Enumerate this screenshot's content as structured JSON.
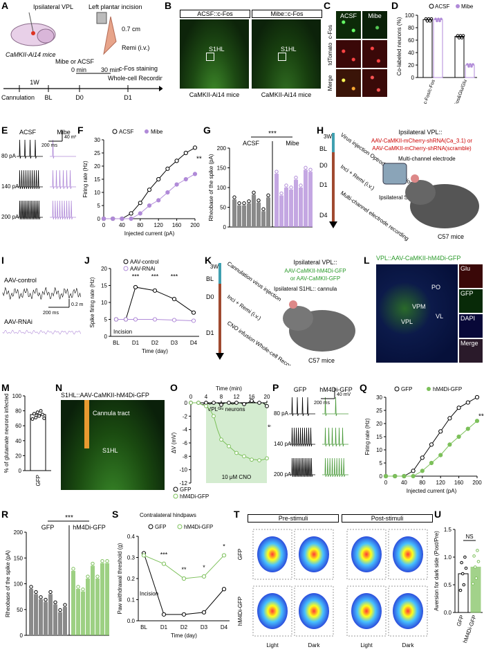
{
  "labels": [
    "A",
    "B",
    "C",
    "D",
    "E",
    "F",
    "G",
    "H",
    "I",
    "J",
    "K",
    "L",
    "M",
    "N",
    "O",
    "P",
    "Q",
    "R",
    "S",
    "T",
    "U"
  ],
  "A": {
    "vpl": "Ipsilateral VPL",
    "incision": "Left plantar incision",
    "dist": "0.7 cm",
    "mouse": "CaMKII-Ai14 mice",
    "remi": "Remi (i.v.)",
    "drug": "Mibe or ACSF",
    "t0": "0 min",
    "t30": "30 min",
    "stain": "c-Fos staining",
    "rec": "Whole-cell Recording",
    "week": "1W",
    "tl": [
      "Cannulation",
      "BL",
      "D0",
      "D1"
    ]
  },
  "B": {
    "left_title": "ACSF::c-Fos",
    "right_title": "Mibe::c-Fos",
    "region": "S1HL",
    "caption": "CaMKII-Ai14 mice"
  },
  "C": {
    "cols": [
      "ACSF",
      "Mibe"
    ],
    "rows": [
      "c-Fos",
      "tdTomato",
      "Merge"
    ]
  },
  "D": {
    "legend": [
      "ACSF",
      "Mibe"
    ],
    "ylabel": "Co-labeled neurons (%)",
    "yticks": [
      "0",
      "20",
      "40",
      "60",
      "80",
      "100"
    ],
    "xlabels": [
      "Glu&c-Fos/c-Fos",
      "c-Fos&Glu/Glu"
    ],
    "bars": [
      {
        "acsf": 93,
        "mibe": 93
      },
      {
        "acsf": 66,
        "mibe": 20
      }
    ],
    "sig": "***"
  },
  "E": {
    "cols": [
      "ACSF",
      "Mibe"
    ],
    "rows": [
      "80 pA",
      "140 pA",
      "200 pA"
    ],
    "sbx": "200 ms",
    "sby": "40 mV"
  },
  "F": {
    "legend": [
      "ACSF",
      "Mibe"
    ],
    "xlabel": "Injected current (pA)",
    "ylabel": "Firing rate (Hz)",
    "xticks": [
      "0",
      "40",
      "80",
      "120",
      "160",
      "200"
    ],
    "yticks": [
      "0",
      "5",
      "10",
      "15",
      "20",
      "25",
      "30"
    ],
    "x": [
      0,
      20,
      40,
      60,
      80,
      100,
      120,
      140,
      160,
      180,
      200
    ],
    "acsf": [
      0,
      0,
      0,
      2,
      6,
      11,
      15,
      19,
      22,
      25,
      27
    ],
    "mibe": [
      0,
      0,
      0,
      0,
      2,
      5,
      7,
      10,
      13,
      15,
      17
    ],
    "sig": "***"
  },
  "G": {
    "ylabel": "Rheobase of the spike (pA)",
    "groups": [
      "ACSF",
      "Mibe"
    ],
    "yticks": [
      "0",
      "50",
      "100",
      "150",
      "200"
    ],
    "acsf": [
      70,
      55,
      55,
      60,
      82,
      62,
      40,
      75
    ],
    "mibe": [
      135,
      80,
      100,
      95,
      120,
      100,
      145,
      140
    ],
    "sig": "***"
  },
  "H": {
    "title": "Ipsilateral VPL::",
    "construct1": "AAV-CaMKII-mCherry-shRNA(Ca_3.1) or",
    "construct2": "AAV-CaMKII-mCherry-shRNA(scramble)",
    "electrode": "Multi-channel electrode",
    "s1hl": "Ipsilateral S1HL",
    "mouse": "C57 mice",
    "week": "3W",
    "tl": [
      "BL",
      "D0",
      "D1",
      "D4"
    ],
    "steps": [
      "Virus injection Optrode implantation",
      "Inci + Remi (i.v.)",
      "Multi-channel electrode recording"
    ]
  },
  "I": {
    "top": "AAV-control",
    "bottom": "AAV-RNAi",
    "sbx": "200 ms",
    "sby": "0.2 mV"
  },
  "J": {
    "legend": [
      "AAV-control",
      "AAV-RNAi"
    ],
    "xlabel": "Time (day)",
    "ylabel": "Spike firing rate (Hz)",
    "xticks": [
      "BL",
      "D1",
      "D2",
      "D3",
      "D4"
    ],
    "yticks": [
      "0",
      "5",
      "10",
      "15",
      "20"
    ],
    "x": [
      0,
      0.5,
      1,
      2,
      3,
      4
    ],
    "control": [
      5,
      5,
      14.5,
      13.5,
      11,
      7
    ],
    "rnai": [
      5,
      5,
      5,
      5,
      4.8,
      4.6
    ],
    "sig": [
      "***",
      "***",
      "***"
    ],
    "annot": "Incision"
  },
  "K": {
    "title": "Ipsilateral VPL::",
    "construct1": "AAV-CaMKII-hM4Di-GFP",
    "construct2": "or AAV-CaMKII-GFP",
    "cannula": "Ipsilateral S1HL:: cannula",
    "mouse": "C57 mice",
    "week": "3W",
    "tl": [
      "BL",
      "D0",
      "D1"
    ],
    "steps": [
      "Cannulation virus injection",
      "Inci + Remi (i.v.)",
      "CNO infusion Whole-cell Recording Behavioral tests"
    ]
  },
  "L": {
    "title": "VPL::AAV-CaMKII-hM4Di-GFP",
    "regions": [
      "PO",
      "VPM",
      "VL",
      "VPL"
    ],
    "side": [
      "Glu",
      "GFP",
      "DAPI",
      "Merge"
    ]
  },
  "M": {
    "ylabel": "% of glutamate neurons infected",
    "yticks": [
      "0",
      "20",
      "40",
      "60",
      "80",
      "100"
    ],
    "xlabel": "GFP",
    "value": 75
  },
  "N": {
    "title": "S1HL::AAV-CaMKII-hM4Di-GFP",
    "tract": "Cannula tract",
    "region": "S1HL"
  },
  "O": {
    "top_label": "Time (min)",
    "xticks": [
      "0",
      "4",
      "8",
      "12",
      "16",
      "20"
    ],
    "ylabel": "ΔV (mV)",
    "yticks": [
      "0",
      "-2",
      "-4",
      "-6",
      "-8",
      "-10",
      "-12"
    ],
    "neurons": "VPLᴳˡᵘ neurons",
    "cno": "10 μM CNO",
    "legend": [
      "GFP",
      "hM4Di-GFP"
    ],
    "x": [
      0,
      1,
      2,
      3,
      4,
      5,
      6,
      7,
      8,
      9,
      10,
      11,
      12,
      13,
      14,
      15,
      16,
      17,
      18,
      19,
      20
    ],
    "gfp": [
      0,
      0,
      0,
      -0.3,
      0,
      -0.2,
      0,
      0,
      -0.3,
      0,
      0,
      -0.2,
      0,
      0,
      -0.2,
      0,
      0.3,
      0,
      0,
      0,
      -0.5
    ],
    "hm4di": [
      0,
      0,
      0,
      -0.3,
      -0.5,
      -1,
      -2,
      -4,
      -5.5,
      -6,
      -6.5,
      -7,
      -7.5,
      -7.8,
      -8,
      -8.2,
      -8.5,
      -8.5,
      -8.6,
      -8.5,
      -8.3
    ],
    "sig": "***"
  },
  "P": {
    "cols": [
      "GFP",
      "hM4Di-GFP"
    ],
    "rows": [
      "80 pA",
      "140 pA",
      "200 pA"
    ],
    "sbx": "200 ms",
    "sby": "40 mV"
  },
  "Q": {
    "legend": [
      "GFP",
      "hM4Di-GFP"
    ],
    "xlabel": "Injected current (pA)",
    "ylabel": "Firing rate (Hz)",
    "xticks": [
      "0",
      "40",
      "80",
      "120",
      "160",
      "200"
    ],
    "yticks": [
      "0",
      "5",
      "10",
      "15",
      "20",
      "25",
      "30"
    ],
    "x": [
      0,
      20,
      40,
      60,
      80,
      100,
      120,
      140,
      160,
      180,
      200
    ],
    "gfp": [
      0,
      0,
      0,
      2,
      7,
      12,
      17,
      22,
      26,
      28,
      30
    ],
    "hm4di": [
      0,
      0,
      0,
      0,
      2,
      5,
      8,
      12,
      15,
      18,
      21
    ],
    "sig": "***"
  },
  "R": {
    "ylabel": "Rheobase of the spike (pA)",
    "groups": [
      "GFP",
      "hM4Di-GFP"
    ],
    "yticks": [
      "0",
      "50",
      "100",
      "150",
      "200"
    ],
    "gfp": [
      90,
      80,
      70,
      65,
      80,
      60,
      45,
      55
    ],
    "hm4di": [
      125,
      90,
      85,
      110,
      135,
      110,
      140,
      140
    ],
    "sig": "***"
  },
  "S": {
    "title": "Contralateral hindpaws",
    "legend": [
      "GFP",
      "hM4Di-GFP"
    ],
    "xlabel": "Time (day)",
    "ylabel": "Paw withdrawal threshold (g)",
    "xticks": [
      "BL",
      "D1",
      "D2",
      "D3",
      "D4"
    ],
    "yticks": [
      "0.0",
      "0.1",
      "0.2",
      "0.3",
      "0.4"
    ],
    "gfp": [
      0.32,
      0.03,
      0.03,
      0.04,
      0.15
    ],
    "hm4di": [
      0.31,
      0.27,
      0.2,
      0.21,
      0.31
    ],
    "sig": [
      "***",
      "**",
      "*",
      "*"
    ],
    "annot": "Incision"
  },
  "T": {
    "headers": [
      "Pre-stimuli",
      "Post-stimuli"
    ],
    "rows": [
      "GFP",
      "hM4Di-GFP"
    ],
    "bottom": [
      "Light",
      "Dark",
      "Light",
      "Dark"
    ]
  },
  "U": {
    "ylabel": "Aversion for dark side (Post/Pre)",
    "yticks": [
      "0.0",
      "0.5",
      "1.0",
      "1.5"
    ],
    "xlabels": [
      "GFP",
      "hM4Di-GFP"
    ],
    "values": [
      0.7,
      0.82
    ],
    "ns": "NS"
  }
}
